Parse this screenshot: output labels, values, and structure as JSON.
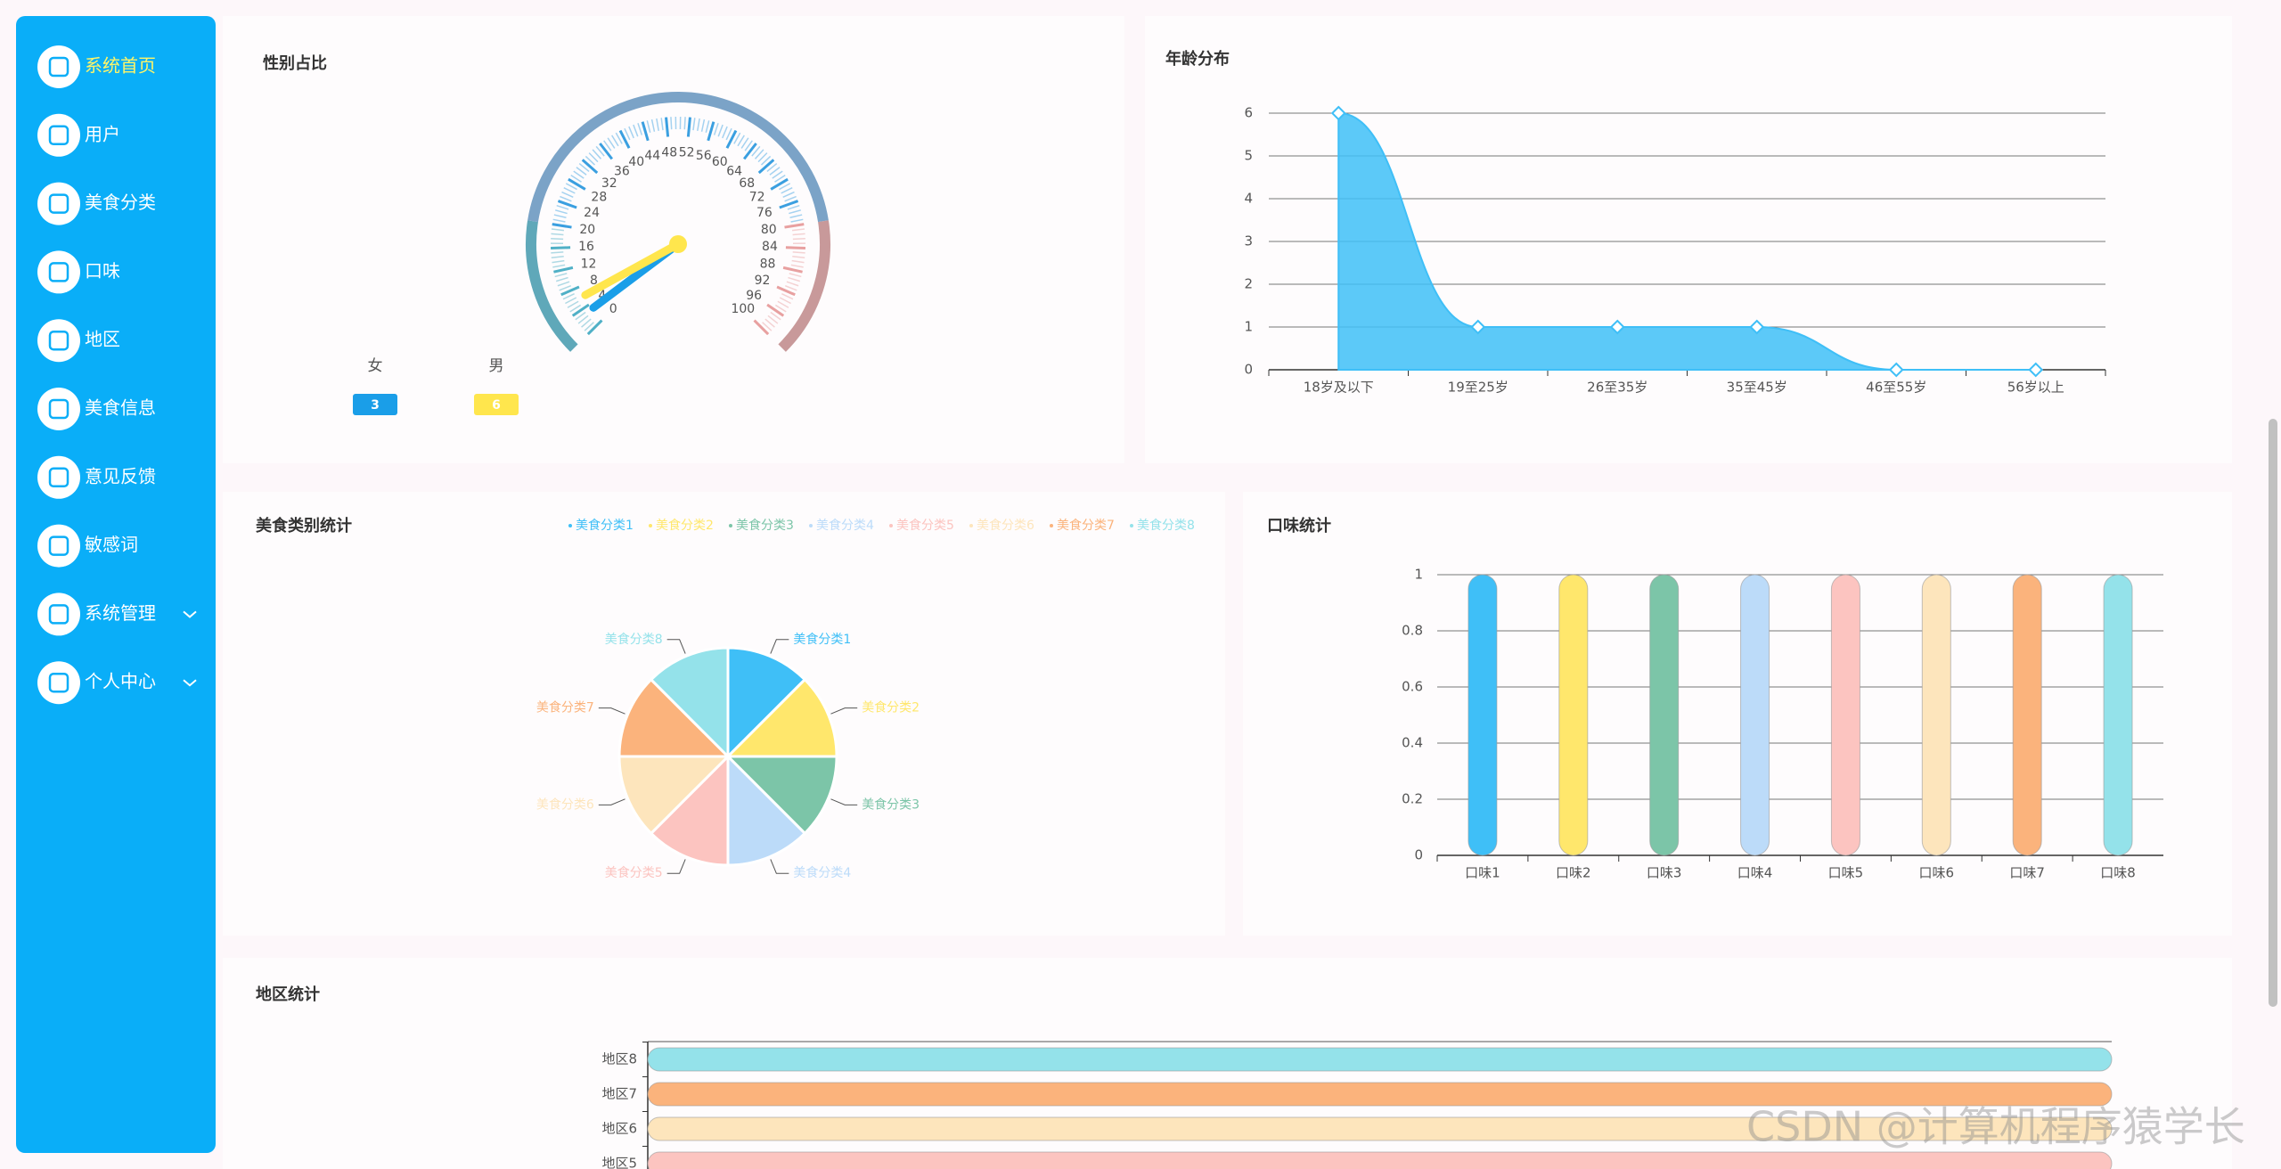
{
  "sidebar": {
    "items": [
      {
        "label": "系统首页",
        "submenu": false
      },
      {
        "label": "用户",
        "submenu": false
      },
      {
        "label": "美食分类",
        "submenu": false
      },
      {
        "label": "口味",
        "submenu": false
      },
      {
        "label": "地区",
        "submenu": false
      },
      {
        "label": "美食信息",
        "submenu": false
      },
      {
        "label": "意见反馈",
        "submenu": false
      },
      {
        "label": "敏感词",
        "submenu": false
      },
      {
        "label": "系统管理",
        "submenu": true
      },
      {
        "label": "个人中心",
        "submenu": true
      }
    ]
  },
  "watermark": "CSDN @计算机程序猿学长",
  "chart_data": [
    {
      "type": "gauge",
      "title": "性别占比",
      "series": [
        {
          "name": "女",
          "color": "#1a9ee8",
          "values": [
            3
          ]
        },
        {
          "name": "男",
          "color": "#ffe64d",
          "values": [
            6
          ]
        }
      ],
      "ylim": [
        0,
        100
      ],
      "yticks": [
        0,
        4,
        8,
        12,
        16,
        20,
        24,
        28,
        32,
        36,
        40,
        44,
        48,
        52,
        56,
        60,
        64,
        68,
        72,
        76,
        80,
        84,
        88,
        92,
        96,
        100
      ]
    },
    {
      "type": "line",
      "title": "年龄分布",
      "categories": [
        "18岁及以下",
        "19至25岁",
        "26至35岁",
        "35至45岁",
        "46至55岁",
        "56岁以上"
      ],
      "values": [
        6,
        1,
        1,
        1,
        0,
        0
      ],
      "color": "#3fbff7",
      "ylim": [
        0,
        6
      ],
      "yticks": [
        0,
        1,
        2,
        3,
        4,
        5,
        6
      ],
      "grid": true
    },
    {
      "type": "pie",
      "title": "美食类别统计",
      "categories": [
        "美食分类1",
        "美食分类2",
        "美食分类3",
        "美食分类4",
        "美食分类5",
        "美食分类6",
        "美食分类7",
        "美食分类8"
      ],
      "values": [
        1,
        1,
        1,
        1,
        1,
        1,
        1,
        1
      ],
      "colors": [
        "#3fbff7",
        "#ffe76c",
        "#7cc5a8",
        "#bcdbf9",
        "#fcc4c0",
        "#fde5bc",
        "#fbb37c",
        "#94e2ea"
      ]
    },
    {
      "type": "bar",
      "title": "口味统计",
      "categories": [
        "口味1",
        "口味2",
        "口味3",
        "口味4",
        "口味5",
        "口味6",
        "口味7",
        "口味8"
      ],
      "values": [
        1,
        1,
        1,
        1,
        1,
        1,
        1,
        1
      ],
      "colors": [
        "#3fbff7",
        "#ffe76c",
        "#7cc5a8",
        "#bcdbf9",
        "#fcc4c0",
        "#fde5bc",
        "#fbb37c",
        "#94e2ea"
      ],
      "ylim": [
        0,
        1
      ],
      "yticks": [
        0,
        0.2,
        0.4,
        0.6,
        0.8,
        1
      ],
      "grid": true
    },
    {
      "type": "barh",
      "title": "地区统计",
      "categories": [
        "地区5",
        "地区6",
        "地区7",
        "地区8"
      ],
      "values": [
        1,
        1,
        1,
        1
      ],
      "colors": [
        "#fcc4c0",
        "#fde5bc",
        "#fbb37c",
        "#94e2ea"
      ],
      "xlim": [
        0,
        1
      ]
    }
  ]
}
